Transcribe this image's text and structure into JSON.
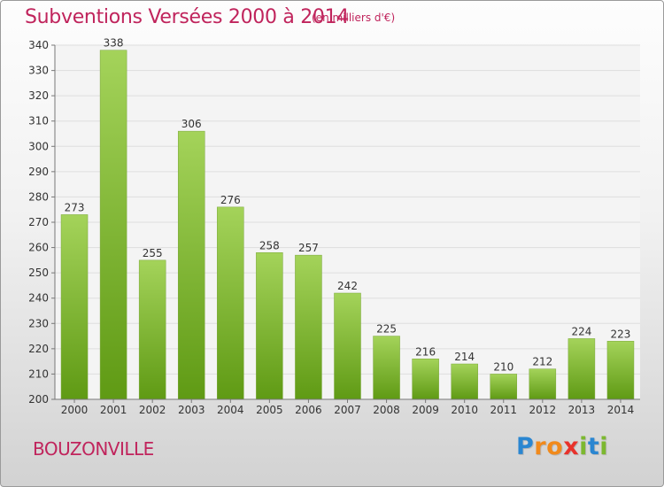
{
  "title": "Subventions Versées 2000 à 2014",
  "subtitle": "(en milliers d'€)",
  "place": "BOUZONVILLE",
  "logo": {
    "text": "Proxiti",
    "letters": [
      {
        "ch": "P",
        "color": "#2a86d1"
      },
      {
        "ch": "r",
        "color": "#f18a1c"
      },
      {
        "ch": "o",
        "color": "#f18a1c"
      },
      {
        "ch": "x",
        "color": "#e8322b"
      },
      {
        "ch": "i",
        "color": "#7cb82f"
      },
      {
        "ch": "t",
        "color": "#2a86d1"
      },
      {
        "ch": "i",
        "color": "#7cb82f"
      }
    ]
  },
  "colors": {
    "accent": "#c0245c",
    "bar_top": "#a4d35a",
    "bar_bottom": "#5f9a14",
    "grid": "#dedede",
    "axis": "#777777"
  },
  "chart_data": {
    "type": "bar",
    "categories": [
      "2000",
      "2001",
      "2002",
      "2003",
      "2004",
      "2005",
      "2006",
      "2007",
      "2008",
      "2009",
      "2010",
      "2011",
      "2012",
      "2013",
      "2014"
    ],
    "values": [
      273,
      338,
      255,
      306,
      276,
      258,
      257,
      242,
      225,
      216,
      214,
      210,
      212,
      224,
      223
    ],
    "title": "Subventions Versées 2000 à 2014",
    "subtitle": "(en milliers d'€)",
    "xlabel": "",
    "ylabel": "",
    "ylim": [
      200,
      340
    ],
    "yticks": [
      200,
      210,
      220,
      230,
      240,
      250,
      260,
      270,
      280,
      290,
      300,
      310,
      320,
      330,
      340
    ],
    "grid": true,
    "data_labels": true
  }
}
